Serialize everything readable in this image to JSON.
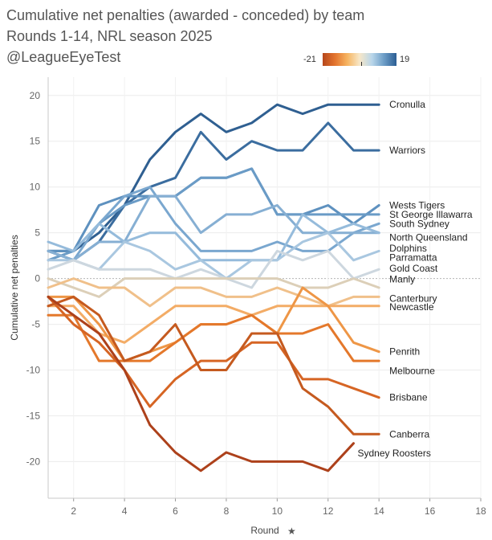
{
  "title": {
    "line1": "Cumulative net penalties (awarded - conceded) by team",
    "line2": "Rounds 1-14, NRL season 2025",
    "line3": "@LeagueEyeTest"
  },
  "legend": {
    "min_label": "-21",
    "max_label": "19",
    "min": -21,
    "max": 19
  },
  "chart_data": {
    "type": "line",
    "title": "Cumulative net penalties (awarded - conceded) by team",
    "subtitle": "Rounds 1-14, NRL season 2025",
    "xlabel": "Round",
    "ylabel": "Cumulative net penalties",
    "xlim": [
      1,
      18
    ],
    "ylim": [
      -24,
      22
    ],
    "xticks": [
      2,
      4,
      6,
      8,
      10,
      12,
      14,
      16,
      18
    ],
    "yticks": [
      -20,
      -15,
      -10,
      -5,
      0,
      5,
      10,
      15,
      20
    ],
    "series": [
      {
        "name": "Cronulla",
        "x": [
          1,
          2,
          3,
          4,
          5,
          6,
          7,
          8,
          9,
          10,
          11,
          12,
          13,
          14
        ],
        "values": [
          3,
          3,
          5,
          8,
          13,
          16,
          18,
          16,
          17,
          19,
          18,
          19,
          19,
          19
        ],
        "color": "#2f5f91",
        "label_y": 19
      },
      {
        "name": "Warriors",
        "x": [
          1,
          2,
          3,
          4,
          5,
          6,
          7,
          8,
          9,
          10,
          11,
          12,
          13,
          14
        ],
        "values": [
          3,
          2,
          4,
          8,
          10,
          11,
          16,
          13,
          15,
          14,
          14,
          17,
          14,
          14
        ],
        "color": "#3b6d9f",
        "label_y": 14
      },
      {
        "name": "Wests Tigers",
        "x": [
          1,
          2,
          3,
          4,
          5,
          6,
          7,
          8,
          9,
          10,
          11,
          12,
          13,
          14
        ],
        "values": [
          3,
          3,
          8,
          9,
          9,
          9,
          11,
          11,
          12,
          7,
          7,
          8,
          6,
          8
        ],
        "color": "#5e91bf",
        "label_y": 8
      },
      {
        "name": "St George Illawarra",
        "x": [
          1,
          2,
          3,
          4,
          5,
          6,
          7,
          8,
          9,
          10,
          11,
          12,
          13,
          14
        ],
        "values": [
          2,
          3,
          6,
          8,
          9,
          9,
          11,
          11,
          12,
          7,
          7,
          7,
          7,
          7
        ],
        "color": "#6a9bc6",
        "label_y": 7
      },
      {
        "name": "South Sydney",
        "x": [
          1,
          2,
          3,
          4,
          5,
          6,
          7,
          8,
          9,
          10,
          11,
          12,
          13,
          14
        ],
        "values": [
          3,
          2,
          6,
          9,
          10,
          6,
          3,
          3,
          3,
          4,
          3,
          3,
          5,
          6
        ],
        "color": "#7aa7cf",
        "label_y": 6
      },
      {
        "name": "North Queensland",
        "x": [
          1,
          2,
          3,
          4,
          5,
          6,
          7,
          8,
          9,
          10,
          11,
          12,
          13,
          14
        ],
        "values": [
          3,
          2,
          4,
          4,
          9,
          9,
          5,
          7,
          7,
          8,
          5,
          5,
          5,
          5
        ],
        "color": "#86afd3",
        "label_y": 4.5
      },
      {
        "name": "Dolphins",
        "x": [
          1,
          2,
          3,
          4,
          5,
          6,
          7,
          8,
          9,
          10,
          11,
          12,
          13,
          14
        ],
        "values": [
          4,
          3,
          6,
          4,
          5,
          5,
          2,
          2,
          2,
          2,
          7,
          5,
          6,
          5
        ],
        "color": "#95bbdb",
        "label_y": 3.3
      },
      {
        "name": "Parramatta",
        "x": [
          1,
          2,
          3,
          4,
          5,
          6,
          7,
          8,
          9,
          10,
          11,
          12,
          13,
          14
        ],
        "values": [
          2,
          2,
          1,
          4,
          3,
          1,
          2,
          0,
          2,
          2,
          4,
          5,
          2,
          3
        ],
        "color": "#a9c7e0",
        "label_y": 2.3
      },
      {
        "name": "Gold Coast",
        "x": [
          1,
          2,
          3,
          4,
          5,
          6,
          7,
          8,
          9,
          10,
          11,
          12,
          13,
          14
        ],
        "values": [
          1,
          2,
          1,
          1,
          1,
          0,
          1,
          0,
          -1,
          3,
          2,
          3,
          0,
          1
        ],
        "color": "#cdd7df",
        "label_y": 1.1
      },
      {
        "name": "Manly",
        "x": [
          1,
          2,
          3,
          4,
          5,
          6,
          7,
          8,
          9,
          10,
          11,
          12,
          13,
          14
        ],
        "values": [
          0,
          -1,
          -2,
          0,
          0,
          0,
          0,
          0,
          0,
          0,
          -1,
          -1,
          0,
          -1
        ],
        "color": "#dccfb8",
        "label_y": -0.1
      },
      {
        "name": "Canterbury",
        "x": [
          1,
          2,
          3,
          4,
          5,
          6,
          7,
          8,
          9,
          10,
          11,
          12,
          13,
          14
        ],
        "values": [
          -1,
          0,
          -1,
          -1,
          -3,
          -1,
          -1,
          -2,
          -2,
          -1,
          -2,
          -3,
          -2,
          -2
        ],
        "color": "#f0c08a",
        "label_y": -2.2
      },
      {
        "name": "Newcastle",
        "x": [
          1,
          2,
          3,
          4,
          5,
          6,
          7,
          8,
          9,
          10,
          11,
          12,
          13,
          14
        ],
        "values": [
          -3,
          -3,
          -6,
          -7,
          -5,
          -3,
          -3,
          -3,
          -4,
          -3,
          -3,
          -3,
          -3,
          -3
        ],
        "color": "#f3ac66",
        "label_y": -3.1
      },
      {
        "name": "Penrith",
        "x": [
          1,
          2,
          3,
          4,
          5,
          6,
          7,
          8,
          9,
          10,
          11,
          12,
          13,
          14
        ],
        "values": [
          -2,
          -2,
          -5,
          -9,
          -8,
          -7,
          -5,
          -5,
          -4,
          -6,
          -1,
          -3,
          -7,
          -8
        ],
        "color": "#ee9646",
        "label_y": -8
      },
      {
        "name": "Melbourne",
        "x": [
          1,
          2,
          3,
          4,
          5,
          6,
          7,
          8,
          9,
          10,
          11,
          12,
          13,
          14
        ],
        "values": [
          -4,
          -4,
          -9,
          -9,
          -9,
          -7,
          -5,
          -5,
          -4,
          -6,
          -6,
          -5,
          -9,
          -9
        ],
        "color": "#e4782b",
        "label_y": -10.1
      },
      {
        "name": "Brisbane",
        "x": [
          1,
          2,
          3,
          4,
          5,
          6,
          7,
          8,
          9,
          10,
          11,
          12,
          13,
          14
        ],
        "values": [
          -2,
          -5,
          -7,
          -10,
          -14,
          -11,
          -9,
          -9,
          -7,
          -7,
          -11,
          -11,
          -12,
          -13
        ],
        "color": "#d66524",
        "label_y": -13
      },
      {
        "name": "Canberra",
        "x": [
          1,
          2,
          3,
          4,
          5,
          6,
          7,
          8,
          9,
          10,
          11,
          12,
          13,
          14
        ],
        "values": [
          -3,
          -2,
          -4,
          -9,
          -8,
          -5,
          -10,
          -10,
          -6,
          -6,
          -12,
          -14,
          -17,
          -17
        ],
        "color": "#c55a1f",
        "label_y": -17
      },
      {
        "name": "Sydney Roosters",
        "x": [
          1,
          2,
          3,
          4,
          5,
          6,
          7,
          8,
          9,
          10,
          11,
          12,
          13
        ],
        "values": [
          -2,
          -4,
          -6,
          -10,
          -16,
          -19,
          -21,
          -19,
          -20,
          -20,
          -20,
          -21,
          -18
        ],
        "color": "#ad411b",
        "label_y": -19.1
      }
    ]
  }
}
